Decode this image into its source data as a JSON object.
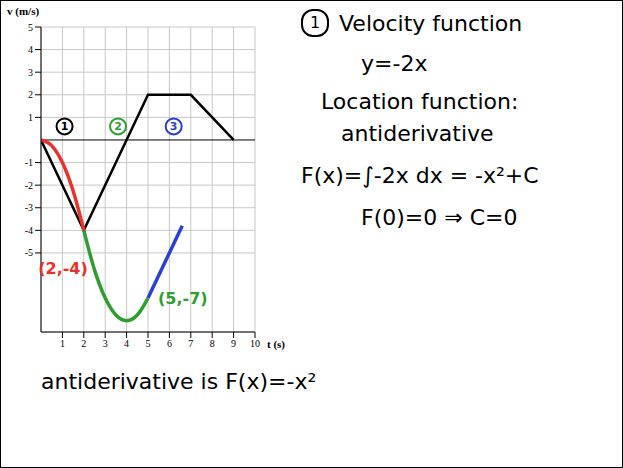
{
  "chart_data": {
    "type": "line",
    "x_label": "t (s)",
    "y_label": "v (m/s)",
    "xlim": [
      0,
      10
    ],
    "ylim": [
      -8.5,
      5
    ],
    "xticks": [
      1,
      2,
      3,
      4,
      5,
      6,
      7,
      8,
      9,
      10
    ],
    "yticks": [
      -5,
      -4,
      -3,
      -2,
      -1,
      1,
      2,
      3,
      4,
      5
    ],
    "grid": true,
    "series": [
      {
        "type": "line",
        "color": "#000000",
        "x": [
          0,
          2,
          5,
          7,
          9
        ],
        "values": [
          0,
          -4,
          2,
          2,
          0
        ]
      },
      {
        "type": "spline",
        "color": "#e8322a",
        "x": [
          0,
          0.5,
          1,
          1.5,
          2
        ],
        "values": [
          0,
          -0.25,
          -1,
          -2.25,
          -4
        ]
      },
      {
        "type": "spline",
        "color": "#2e9e2e",
        "x": [
          2,
          2.5,
          3,
          3.5,
          4,
          4.5,
          5
        ],
        "values": [
          -4,
          -5.75,
          -7,
          -7.75,
          -8,
          -7.75,
          -7
        ]
      },
      {
        "type": "line",
        "color": "#2a3fd8",
        "x": [
          5,
          6.6
        ],
        "values": [
          -7,
          -3.8
        ]
      }
    ],
    "annotations": [
      {
        "text": "(2,-4)",
        "x": 2,
        "y": -4,
        "color": "#e8322a"
      },
      {
        "text": "(5,-7)",
        "x": 5,
        "y": -7,
        "color": "#2e9e2e"
      },
      {
        "text": "1",
        "x": 1.1,
        "y": 0.6,
        "color": "#000000",
        "marker": "circle"
      },
      {
        "text": "2",
        "x": 3.6,
        "y": 0.6,
        "color": "#2e9e2e",
        "marker": "circle"
      },
      {
        "text": "3",
        "x": 6.2,
        "y": 0.6,
        "color": "#2a3fd8",
        "marker": "circle"
      }
    ]
  },
  "notes": {
    "number": "1",
    "title": "Velocity function",
    "lines": [
      "y=-2x",
      "Location function:",
      "antiderivative",
      "F(x)=∫-2x dx = -x²+C",
      "F(0)=0 ⇒ C=0"
    ],
    "conclusion": "antiderivative is F(x)=-x²"
  }
}
